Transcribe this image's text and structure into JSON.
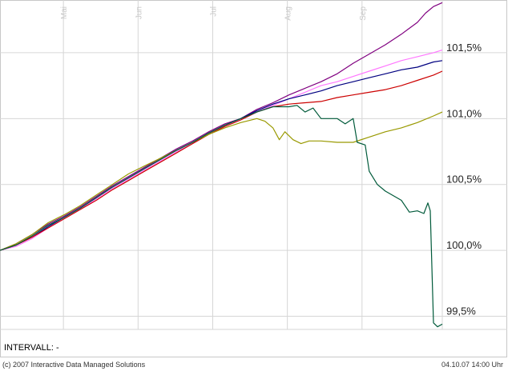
{
  "chart_data": {
    "type": "line",
    "x_ticks": [
      "Mai",
      "Jun",
      "Jul",
      "Aug",
      "Sep"
    ],
    "y_ticks": [
      "101,5%",
      "101,0%",
      "100,5%",
      "100,0%",
      "99,5%"
    ],
    "ylim": [
      99.4,
      101.9
    ],
    "grid": true,
    "series": [
      {
        "color": "#800080",
        "points": [
          [
            0,
            100.0
          ],
          [
            20,
            100.05
          ],
          [
            40,
            100.12
          ],
          [
            60,
            100.2
          ],
          [
            80,
            100.26
          ],
          [
            100,
            100.33
          ],
          [
            120,
            100.41
          ],
          [
            140,
            100.49
          ],
          [
            160,
            100.56
          ],
          [
            180,
            100.63
          ],
          [
            200,
            100.7
          ],
          [
            220,
            100.77
          ],
          [
            240,
            100.83
          ],
          [
            260,
            100.9
          ],
          [
            280,
            100.96
          ],
          [
            300,
            101.0
          ],
          [
            320,
            101.07
          ],
          [
            340,
            101.12
          ],
          [
            360,
            101.18
          ],
          [
            380,
            101.23
          ],
          [
            400,
            101.28
          ],
          [
            420,
            101.34
          ],
          [
            440,
            101.42
          ],
          [
            460,
            101.49
          ],
          [
            480,
            101.56
          ],
          [
            500,
            101.64
          ],
          [
            520,
            101.73
          ],
          [
            530,
            101.8
          ],
          [
            540,
            101.85
          ],
          [
            551,
            101.88
          ]
        ]
      },
      {
        "color": "#ff77ff",
        "points": [
          [
            0,
            100.0
          ],
          [
            20,
            100.03
          ],
          [
            40,
            100.09
          ],
          [
            60,
            100.17
          ],
          [
            80,
            100.24
          ],
          [
            100,
            100.31
          ],
          [
            120,
            100.39
          ],
          [
            140,
            100.47
          ],
          [
            160,
            100.54
          ],
          [
            180,
            100.61
          ],
          [
            200,
            100.68
          ],
          [
            220,
            100.75
          ],
          [
            240,
            100.81
          ],
          [
            260,
            100.88
          ],
          [
            280,
            100.94
          ],
          [
            300,
            100.99
          ],
          [
            320,
            101.05
          ],
          [
            340,
            101.1
          ],
          [
            360,
            101.15
          ],
          [
            380,
            101.2
          ],
          [
            400,
            101.25
          ],
          [
            420,
            101.28
          ],
          [
            440,
            101.32
          ],
          [
            460,
            101.36
          ],
          [
            480,
            101.4
          ],
          [
            500,
            101.44
          ],
          [
            520,
            101.47
          ],
          [
            540,
            101.5
          ],
          [
            551,
            101.52
          ]
        ]
      },
      {
        "color": "#000080",
        "points": [
          [
            0,
            100.0
          ],
          [
            20,
            100.04
          ],
          [
            40,
            100.1
          ],
          [
            60,
            100.18
          ],
          [
            80,
            100.25
          ],
          [
            100,
            100.32
          ],
          [
            120,
            100.4
          ],
          [
            140,
            100.48
          ],
          [
            160,
            100.55
          ],
          [
            180,
            100.62
          ],
          [
            200,
            100.69
          ],
          [
            220,
            100.76
          ],
          [
            240,
            100.82
          ],
          [
            260,
            100.89
          ],
          [
            280,
            100.95
          ],
          [
            300,
            101.0
          ],
          [
            320,
            101.06
          ],
          [
            340,
            101.11
          ],
          [
            360,
            101.15
          ],
          [
            380,
            101.18
          ],
          [
            400,
            101.21
          ],
          [
            420,
            101.25
          ],
          [
            440,
            101.28
          ],
          [
            460,
            101.31
          ],
          [
            480,
            101.34
          ],
          [
            500,
            101.37
          ],
          [
            520,
            101.39
          ],
          [
            540,
            101.43
          ],
          [
            551,
            101.44
          ]
        ]
      },
      {
        "color": "#cc0000",
        "points": [
          [
            0,
            100.0
          ],
          [
            20,
            100.04
          ],
          [
            40,
            100.1
          ],
          [
            60,
            100.17
          ],
          [
            80,
            100.24
          ],
          [
            100,
            100.31
          ],
          [
            120,
            100.38
          ],
          [
            140,
            100.46
          ],
          [
            160,
            100.53
          ],
          [
            180,
            100.6
          ],
          [
            200,
            100.67
          ],
          [
            220,
            100.74
          ],
          [
            240,
            100.81
          ],
          [
            260,
            100.88
          ],
          [
            280,
            100.94
          ],
          [
            300,
            100.99
          ],
          [
            320,
            101.05
          ],
          [
            340,
            101.09
          ],
          [
            360,
            101.11
          ],
          [
            380,
            101.12
          ],
          [
            400,
            101.13
          ],
          [
            420,
            101.16
          ],
          [
            440,
            101.18
          ],
          [
            460,
            101.2
          ],
          [
            480,
            101.22
          ],
          [
            500,
            101.25
          ],
          [
            520,
            101.29
          ],
          [
            540,
            101.33
          ],
          [
            551,
            101.36
          ]
        ]
      },
      {
        "color": "#999900",
        "points": [
          [
            0,
            100.0
          ],
          [
            20,
            100.05
          ],
          [
            40,
            100.12
          ],
          [
            60,
            100.21
          ],
          [
            80,
            100.27
          ],
          [
            100,
            100.34
          ],
          [
            120,
            100.42
          ],
          [
            140,
            100.5
          ],
          [
            160,
            100.58
          ],
          [
            180,
            100.64
          ],
          [
            200,
            100.7
          ],
          [
            220,
            100.76
          ],
          [
            240,
            100.82
          ],
          [
            260,
            100.88
          ],
          [
            280,
            100.93
          ],
          [
            300,
            100.97
          ],
          [
            320,
            101.0
          ],
          [
            330,
            100.98
          ],
          [
            340,
            100.93
          ],
          [
            348,
            100.84
          ],
          [
            355,
            100.9
          ],
          [
            365,
            100.84
          ],
          [
            375,
            100.81
          ],
          [
            385,
            100.83
          ],
          [
            400,
            100.83
          ],
          [
            420,
            100.82
          ],
          [
            440,
            100.82
          ],
          [
            460,
            100.86
          ],
          [
            480,
            100.9
          ],
          [
            500,
            100.93
          ],
          [
            520,
            100.97
          ],
          [
            540,
            101.02
          ],
          [
            551,
            101.05
          ]
        ]
      },
      {
        "color": "#005a3a",
        "points": [
          [
            0,
            100.0
          ],
          [
            20,
            100.04
          ],
          [
            40,
            100.11
          ],
          [
            60,
            100.19
          ],
          [
            80,
            100.25
          ],
          [
            100,
            100.32
          ],
          [
            120,
            100.4
          ],
          [
            140,
            100.48
          ],
          [
            160,
            100.55
          ],
          [
            180,
            100.62
          ],
          [
            200,
            100.69
          ],
          [
            220,
            100.76
          ],
          [
            240,
            100.82
          ],
          [
            260,
            100.89
          ],
          [
            280,
            100.95
          ],
          [
            300,
            101.0
          ],
          [
            320,
            101.05
          ],
          [
            340,
            101.09
          ],
          [
            360,
            101.09
          ],
          [
            370,
            101.1
          ],
          [
            380,
            101.05
          ],
          [
            390,
            101.08
          ],
          [
            400,
            101.0
          ],
          [
            420,
            101.0
          ],
          [
            430,
            100.96
          ],
          [
            440,
            101.0
          ],
          [
            445,
            100.82
          ],
          [
            455,
            100.8
          ],
          [
            460,
            100.6
          ],
          [
            470,
            100.5
          ],
          [
            480,
            100.45
          ],
          [
            500,
            100.38
          ],
          [
            510,
            100.29
          ],
          [
            520,
            100.3
          ],
          [
            528,
            100.28
          ],
          [
            533,
            100.36
          ],
          [
            536,
            100.3
          ],
          [
            540,
            99.45
          ],
          [
            545,
            99.42
          ],
          [
            551,
            99.44
          ]
        ]
      }
    ]
  },
  "interval_label": "INTERVALL: -",
  "footer": {
    "copyright": "(c) 2007 Interactive Data Managed Solutions",
    "datetime": "04.10.07    14:00 Uhr"
  }
}
